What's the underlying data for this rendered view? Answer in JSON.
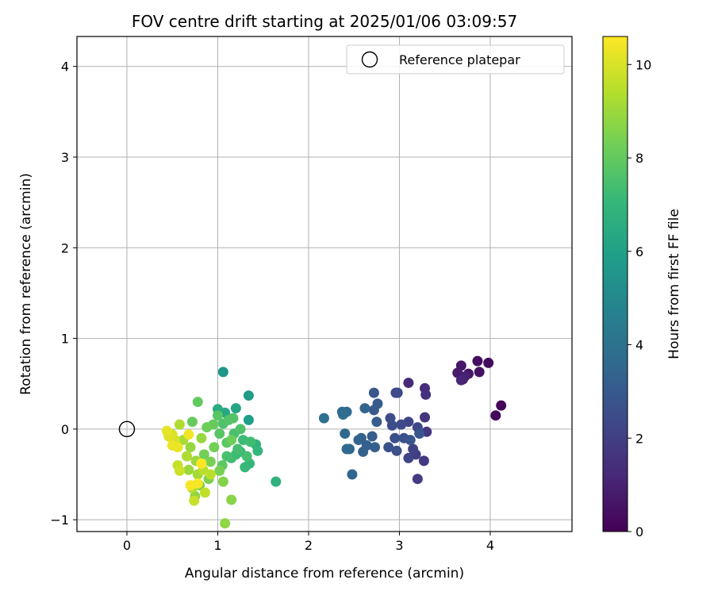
{
  "chart_data": {
    "type": "scatter",
    "title": "FOV centre drift starting at 2025/01/06 03:09:57",
    "xlabel": "Angular distance from reference (arcmin)",
    "ylabel": "Rotation from reference (arcmin)",
    "xlim": [
      -0.55,
      4.9
    ],
    "ylim": [
      -1.13,
      4.33
    ],
    "xticks": [
      0,
      1,
      2,
      3,
      4
    ],
    "yticks": [
      -1,
      0,
      1,
      2,
      3,
      4
    ],
    "grid": true,
    "legend": {
      "position": "top-right",
      "label": "Reference platepar"
    },
    "reference_point": {
      "x": 0,
      "y": 0
    },
    "colorbar": {
      "label": "Hours from first FF file",
      "range": [
        0,
        10.6
      ],
      "ticks": [
        0,
        2,
        4,
        6,
        8,
        10
      ],
      "colormap": [
        "#440154",
        "#482878",
        "#3e4989",
        "#31688e",
        "#26828e",
        "#1f9e89",
        "#35b779",
        "#6ece58",
        "#b5de2b",
        "#fde725"
      ]
    },
    "points": [
      {
        "x": 4.12,
        "y": 0.26,
        "c": 0.1
      },
      {
        "x": 4.06,
        "y": 0.15,
        "c": 0.2
      },
      {
        "x": 3.98,
        "y": 0.73,
        "c": 0.3
      },
      {
        "x": 3.86,
        "y": 0.75,
        "c": 0.4
      },
      {
        "x": 3.88,
        "y": 0.63,
        "c": 0.5
      },
      {
        "x": 3.76,
        "y": 0.61,
        "c": 0.6
      },
      {
        "x": 3.68,
        "y": 0.7,
        "c": 0.7
      },
      {
        "x": 3.64,
        "y": 0.62,
        "c": 0.8
      },
      {
        "x": 3.7,
        "y": 0.55,
        "c": 0.9
      },
      {
        "x": 3.72,
        "y": 0.58,
        "c": 1.0
      },
      {
        "x": 3.68,
        "y": 0.54,
        "c": 1.1
      },
      {
        "x": 3.1,
        "y": 0.51,
        "c": 1.3
      },
      {
        "x": 3.28,
        "y": 0.45,
        "c": 1.4
      },
      {
        "x": 3.29,
        "y": 0.38,
        "c": 1.5
      },
      {
        "x": 3.28,
        "y": 0.13,
        "c": 1.6
      },
      {
        "x": 3.3,
        "y": -0.03,
        "c": 1.7
      },
      {
        "x": 3.27,
        "y": -0.35,
        "c": 1.8
      },
      {
        "x": 3.2,
        "y": -0.55,
        "c": 1.9
      },
      {
        "x": 3.18,
        "y": -0.28,
        "c": 2.0
      },
      {
        "x": 3.15,
        "y": -0.22,
        "c": 2.1
      },
      {
        "x": 3.1,
        "y": 0.08,
        "c": 2.2
      },
      {
        "x": 3.1,
        "y": -0.32,
        "c": 2.2
      },
      {
        "x": 3.2,
        "y": 0.02,
        "c": 2.3
      },
      {
        "x": 2.98,
        "y": 0.4,
        "c": 2.3
      },
      {
        "x": 2.96,
        "y": 0.4,
        "c": 2.4
      },
      {
        "x": 3.02,
        "y": 0.05,
        "c": 2.4
      },
      {
        "x": 2.9,
        "y": 0.12,
        "c": 2.5
      },
      {
        "x": 2.92,
        "y": 0.04,
        "c": 2.5
      },
      {
        "x": 2.95,
        "y": -0.1,
        "c": 2.6
      },
      {
        "x": 2.97,
        "y": -0.24,
        "c": 2.6
      },
      {
        "x": 2.88,
        "y": -0.2,
        "c": 2.7
      },
      {
        "x": 3.05,
        "y": -0.1,
        "c": 2.7
      },
      {
        "x": 3.12,
        "y": -0.12,
        "c": 2.8
      },
      {
        "x": 3.22,
        "y": -0.05,
        "c": 2.8
      },
      {
        "x": 2.72,
        "y": 0.4,
        "c": 2.9
      },
      {
        "x": 2.76,
        "y": 0.28,
        "c": 3.0
      },
      {
        "x": 2.72,
        "y": 0.21,
        "c": 3.0
      },
      {
        "x": 2.75,
        "y": 0.08,
        "c": 3.1
      },
      {
        "x": 2.7,
        "y": -0.08,
        "c": 3.1
      },
      {
        "x": 2.73,
        "y": -0.2,
        "c": 3.2
      },
      {
        "x": 2.64,
        "y": -0.18,
        "c": 3.2
      },
      {
        "x": 2.6,
        "y": -0.25,
        "c": 3.3
      },
      {
        "x": 2.58,
        "y": -0.1,
        "c": 3.3
      },
      {
        "x": 2.62,
        "y": 0.23,
        "c": 3.4
      },
      {
        "x": 2.55,
        "y": -0.12,
        "c": 3.4
      },
      {
        "x": 2.45,
        "y": -0.22,
        "c": 3.5
      },
      {
        "x": 2.48,
        "y": -0.5,
        "c": 3.5
      },
      {
        "x": 2.42,
        "y": -0.22,
        "c": 3.6
      },
      {
        "x": 2.4,
        "y": -0.05,
        "c": 3.6
      },
      {
        "x": 2.42,
        "y": 0.19,
        "c": 3.7
      },
      {
        "x": 2.37,
        "y": 0.19,
        "c": 3.7
      },
      {
        "x": 2.38,
        "y": 0.16,
        "c": 3.8
      },
      {
        "x": 2.17,
        "y": 0.12,
        "c": 3.9
      },
      {
        "x": 1.06,
        "y": 0.63,
        "c": 5.6
      },
      {
        "x": 1.34,
        "y": 0.37,
        "c": 5.8
      },
      {
        "x": 1.34,
        "y": 0.1,
        "c": 5.9
      },
      {
        "x": 1.2,
        "y": 0.23,
        "c": 6.2
      },
      {
        "x": 1.08,
        "y": 0.18,
        "c": 6.3
      },
      {
        "x": 1.0,
        "y": 0.22,
        "c": 6.5
      },
      {
        "x": 1.64,
        "y": -0.58,
        "c": 6.8
      },
      {
        "x": 1.42,
        "y": -0.17,
        "c": 6.9
      },
      {
        "x": 1.44,
        "y": -0.24,
        "c": 7.0
      },
      {
        "x": 1.35,
        "y": -0.38,
        "c": 7.0
      },
      {
        "x": 1.3,
        "y": -0.42,
        "c": 7.1
      },
      {
        "x": 1.25,
        "y": -0.25,
        "c": 7.1
      },
      {
        "x": 1.28,
        "y": -0.12,
        "c": 7.2
      },
      {
        "x": 1.2,
        "y": -0.28,
        "c": 7.2
      },
      {
        "x": 1.15,
        "y": -0.32,
        "c": 7.3
      },
      {
        "x": 1.36,
        "y": -0.14,
        "c": 7.3
      },
      {
        "x": 1.22,
        "y": -0.22,
        "c": 7.4
      },
      {
        "x": 1.32,
        "y": -0.3,
        "c": 7.4
      },
      {
        "x": 1.18,
        "y": -0.05,
        "c": 7.5
      },
      {
        "x": 1.1,
        "y": -0.3,
        "c": 7.5
      },
      {
        "x": 1.25,
        "y": 0.0,
        "c": 7.6
      },
      {
        "x": 1.06,
        "y": 0.06,
        "c": 7.6
      },
      {
        "x": 1.12,
        "y": 0.1,
        "c": 7.7
      },
      {
        "x": 1.17,
        "y": 0.12,
        "c": 7.7
      },
      {
        "x": 1.0,
        "y": 0.15,
        "c": 7.8
      },
      {
        "x": 1.02,
        "y": -0.05,
        "c": 7.8
      },
      {
        "x": 1.1,
        "y": -0.15,
        "c": 7.9
      },
      {
        "x": 1.05,
        "y": -0.4,
        "c": 7.9
      },
      {
        "x": 0.78,
        "y": 0.3,
        "c": 8.0
      },
      {
        "x": 0.95,
        "y": 0.05,
        "c": 8.1
      },
      {
        "x": 0.72,
        "y": 0.08,
        "c": 8.1
      },
      {
        "x": 0.88,
        "y": 0.02,
        "c": 8.2
      },
      {
        "x": 1.15,
        "y": -0.12,
        "c": 8.2
      },
      {
        "x": 0.96,
        "y": -0.2,
        "c": 8.3
      },
      {
        "x": 0.85,
        "y": -0.28,
        "c": 8.3
      },
      {
        "x": 0.92,
        "y": -0.36,
        "c": 8.4
      },
      {
        "x": 1.02,
        "y": -0.46,
        "c": 8.4
      },
      {
        "x": 0.9,
        "y": -0.55,
        "c": 8.5
      },
      {
        "x": 0.8,
        "y": -0.62,
        "c": 8.5
      },
      {
        "x": 1.06,
        "y": -0.58,
        "c": 8.6
      },
      {
        "x": 1.15,
        "y": -0.78,
        "c": 8.7
      },
      {
        "x": 1.08,
        "y": -1.04,
        "c": 8.8
      },
      {
        "x": 0.75,
        "y": -0.74,
        "c": 8.8
      },
      {
        "x": 0.82,
        "y": -0.1,
        "c": 8.9
      },
      {
        "x": 0.7,
        "y": -0.2,
        "c": 8.9
      },
      {
        "x": 0.76,
        "y": -0.35,
        "c": 9.0
      },
      {
        "x": 0.68,
        "y": -0.45,
        "c": 9.0
      },
      {
        "x": 0.78,
        "y": -0.5,
        "c": 9.1
      },
      {
        "x": 0.62,
        "y": -0.12,
        "c": 9.2
      },
      {
        "x": 0.58,
        "y": 0.05,
        "c": 9.3
      },
      {
        "x": 0.66,
        "y": -0.3,
        "c": 9.3
      },
      {
        "x": 0.72,
        "y": -0.65,
        "c": 9.4
      },
      {
        "x": 0.84,
        "y": -0.45,
        "c": 9.5
      },
      {
        "x": 0.92,
        "y": -0.5,
        "c": 9.5
      },
      {
        "x": 0.86,
        "y": -0.7,
        "c": 9.6
      },
      {
        "x": 0.74,
        "y": -0.79,
        "c": 9.7
      },
      {
        "x": 0.56,
        "y": -0.4,
        "c": 9.7
      },
      {
        "x": 0.58,
        "y": -0.46,
        "c": 9.8
      },
      {
        "x": 0.53,
        "y": -0.12,
        "c": 9.9
      },
      {
        "x": 0.5,
        "y": -0.06,
        "c": 10.0
      },
      {
        "x": 0.46,
        "y": -0.08,
        "c": 10.1
      },
      {
        "x": 0.44,
        "y": -0.02,
        "c": 10.2
      },
      {
        "x": 0.5,
        "y": -0.18,
        "c": 10.3
      },
      {
        "x": 0.56,
        "y": -0.2,
        "c": 10.3
      },
      {
        "x": 0.68,
        "y": -0.06,
        "c": 10.4
      },
      {
        "x": 0.7,
        "y": -0.62,
        "c": 10.5
      },
      {
        "x": 0.78,
        "y": -0.6,
        "c": 10.5
      },
      {
        "x": 0.82,
        "y": -0.38,
        "c": 10.6
      }
    ]
  }
}
